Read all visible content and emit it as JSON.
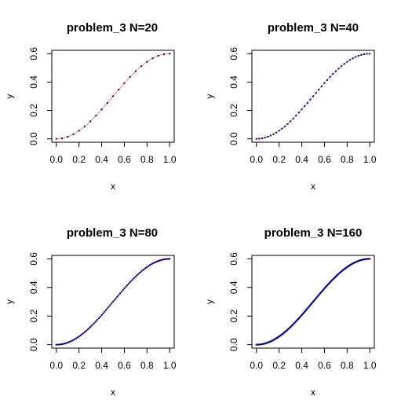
{
  "chart_data": [
    {
      "type": "line",
      "title": "problem_3    N=20",
      "xlabel": "x",
      "ylabel": "y",
      "xlim": [
        0,
        1
      ],
      "ylim": [
        0,
        0.6
      ],
      "xticks": [
        "0.0",
        "0.2",
        "0.4",
        "0.6",
        "0.8",
        "1.0"
      ],
      "yticks": [
        "0.0",
        "0.2",
        "0.4",
        "0.6"
      ],
      "grid": false,
      "n_points": 20,
      "curve": "y = 0.6*sin(pi*x/2)^2",
      "colors": {
        "curve": "#ff8080",
        "points": "#00007f"
      }
    },
    {
      "type": "line",
      "title": "problem_3    N=40",
      "xlabel": "x",
      "ylabel": "y",
      "xlim": [
        0,
        1
      ],
      "ylim": [
        0,
        0.6
      ],
      "xticks": [
        "0.0",
        "0.2",
        "0.4",
        "0.6",
        "0.8",
        "1.0"
      ],
      "yticks": [
        "0.0",
        "0.2",
        "0.4",
        "0.6"
      ],
      "grid": false,
      "n_points": 40,
      "curve": "y = 0.6*sin(pi*x/2)^2",
      "colors": {
        "curve": "#ff8080",
        "points": "#00007f"
      }
    },
    {
      "type": "line",
      "title": "problem_3    N=80",
      "xlabel": "x",
      "ylabel": "y",
      "xlim": [
        0,
        1
      ],
      "ylim": [
        0,
        0.6
      ],
      "xticks": [
        "0.0",
        "0.2",
        "0.4",
        "0.6",
        "0.8",
        "1.0"
      ],
      "yticks": [
        "0.0",
        "0.2",
        "0.4",
        "0.6"
      ],
      "grid": false,
      "n_points": 80,
      "curve": "y = 0.6*sin(pi*x/2)^2",
      "colors": {
        "curve": "#ff8080",
        "points": "#00007f"
      }
    },
    {
      "type": "line",
      "title": "problem_3    N=160",
      "xlabel": "x",
      "ylabel": "y",
      "xlim": [
        0,
        1
      ],
      "ylim": [
        0,
        0.6
      ],
      "xticks": [
        "0.0",
        "0.2",
        "0.4",
        "0.6",
        "0.8",
        "1.0"
      ],
      "yticks": [
        "0.0",
        "0.2",
        "0.4",
        "0.6"
      ],
      "grid": false,
      "n_points": 160,
      "curve": "y = 0.6*sin(pi*x/2)^2",
      "colors": {
        "curve": "#ff8080",
        "points": "#00007f"
      }
    }
  ]
}
